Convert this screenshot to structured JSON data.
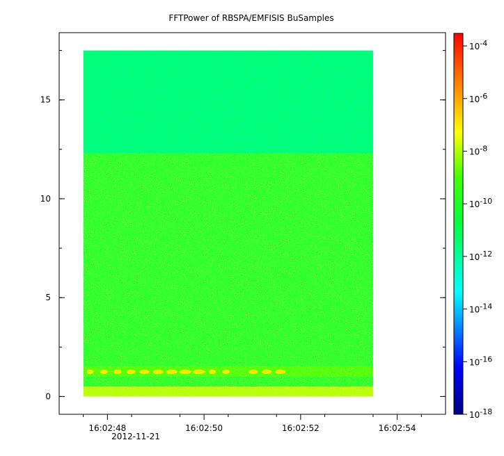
{
  "chart_data": {
    "type": "heatmap",
    "title": "FFTPower of RBSPA/EMFISIS  BuSamples",
    "xlabel": "",
    "ylabel": "",
    "x_axis": {
      "kind": "time",
      "ticks": [
        "16:02:48",
        "16:02:50",
        "16:02:52",
        "16:02:54"
      ],
      "date_label": "2012-11-21",
      "range": [
        "16:02:47.0",
        "16:02:55.0"
      ],
      "data_range": [
        "16:02:47.5",
        "16:02:53.5"
      ]
    },
    "y_axis": {
      "ticks": [
        "0",
        "5",
        "10",
        "15"
      ],
      "ylim": [
        -0.9,
        18.4
      ],
      "data_range": [
        0,
        17.5
      ]
    },
    "colorbar": {
      "scale": "log",
      "colormap": "rainbow (blue to red)",
      "range": [
        1e-18,
        0.0003
      ],
      "ticks": [
        "10-4",
        "10-6",
        "10-8",
        "10-10",
        "10-12",
        "10-14",
        "10-16",
        "10-18"
      ],
      "tick_values": [
        0.0001,
        1e-06,
        1e-08,
        1e-10,
        1e-12,
        1e-14,
        1e-16,
        1e-18
      ]
    },
    "bands": [
      {
        "y_range": [
          12.3,
          17.5
        ],
        "typical_power": 3e-12
      },
      {
        "y_range": [
          1.5,
          12.3
        ],
        "typical_power": 1e-10
      },
      {
        "y_range": [
          1.0,
          1.5
        ],
        "typical_power": 1e-09
      },
      {
        "y_range": [
          0.5,
          1.0
        ],
        "typical_power": 1e-10
      },
      {
        "y_range": [
          0,
          0.5
        ],
        "typical_power": 1e-08
      }
    ],
    "features": [
      {
        "y": 1.25,
        "time_range": [
          "16:02:47.5",
          "16:02:52"
        ],
        "typical_power": 1e-07,
        "note": "intermittent enhanced power near 1.25"
      }
    ],
    "grid": false,
    "legend": "colorbar right"
  }
}
